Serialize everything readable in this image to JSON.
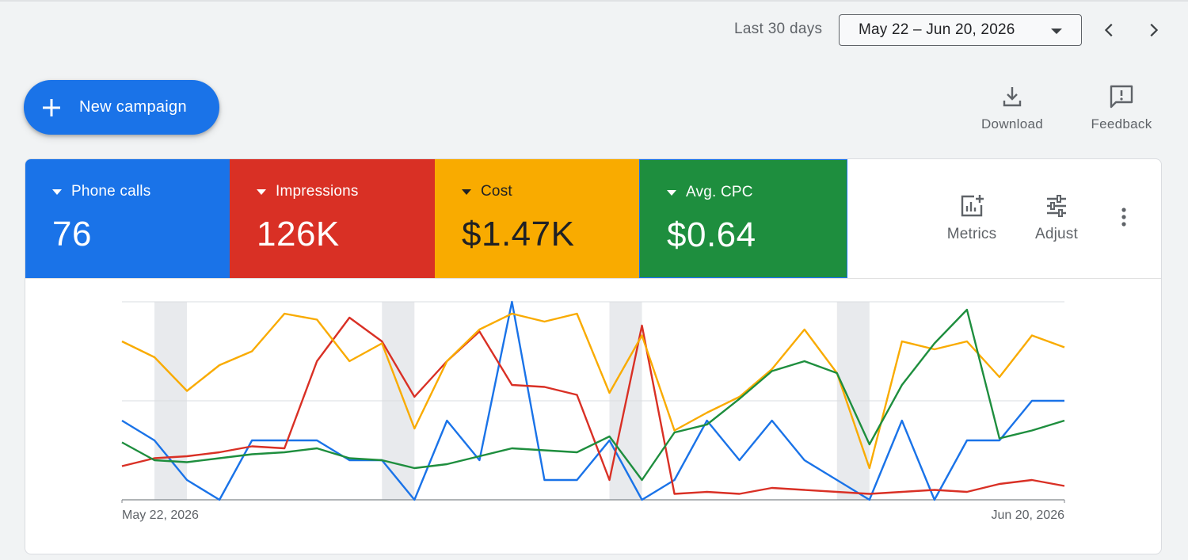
{
  "date_range": {
    "label": "Last 30 days",
    "value": "May 22 – Jun 20, 2026"
  },
  "toolbar": {
    "new_campaign": "New campaign",
    "download": "Download",
    "feedback": "Feedback"
  },
  "metrics": [
    {
      "label": "Phone calls",
      "value": "76",
      "color": "#1a73e8"
    },
    {
      "label": "Impressions",
      "value": "126K",
      "color": "#d93025"
    },
    {
      "label": "Cost",
      "value": "$1.47K",
      "color": "#f9ab00"
    },
    {
      "label": "Avg. CPC",
      "value": "$0.64",
      "color": "#1e8e3e"
    }
  ],
  "card_tools": {
    "metrics": "Metrics",
    "adjust": "Adjust"
  },
  "chart_data": {
    "type": "line",
    "x_start_label": "May 22, 2026",
    "x_end_label": "Jun 20, 2026",
    "categories": [
      1,
      2,
      3,
      4,
      5,
      6,
      7,
      8,
      9,
      10,
      11,
      12,
      13,
      14,
      15,
      16,
      17,
      18,
      19,
      20,
      21,
      22,
      23,
      24,
      25,
      26,
      27,
      28,
      29,
      30
    ],
    "ylim": [
      0,
      100
    ],
    "grid": true,
    "weekend_bands": [
      1,
      8,
      15,
      22
    ],
    "series": [
      {
        "name": "Phone calls",
        "color": "#1a73e8",
        "values": [
          40,
          30,
          10,
          0,
          30,
          30,
          30,
          20,
          20,
          0,
          40,
          20,
          100,
          10,
          10,
          30,
          0,
          10,
          40,
          20,
          40,
          20,
          10,
          0,
          40,
          0,
          30,
          30,
          50,
          50
        ]
      },
      {
        "name": "Impressions",
        "color": "#d93025",
        "values": [
          17,
          21,
          22,
          24,
          27,
          26,
          70,
          92,
          80,
          52,
          70,
          85,
          58,
          57,
          53,
          10,
          88,
          3,
          4,
          3,
          6,
          5,
          4,
          3,
          4,
          5,
          4,
          8,
          10,
          7
        ]
      },
      {
        "name": "Cost",
        "color": "#f9ab00",
        "values": [
          80,
          72,
          55,
          68,
          75,
          94,
          91,
          70,
          79,
          36,
          70,
          86,
          94,
          90,
          94,
          54,
          83,
          35,
          44,
          52,
          66,
          86,
          64,
          16,
          80,
          76,
          80,
          62,
          83,
          77
        ]
      },
      {
        "name": "Avg. CPC",
        "color": "#1e8e3e",
        "values": [
          29,
          20,
          19,
          21,
          23,
          24,
          26,
          21,
          20,
          16,
          18,
          22,
          26,
          25,
          24,
          32,
          10,
          34,
          38,
          51,
          65,
          70,
          64,
          28,
          58,
          79,
          96,
          31,
          35,
          40
        ]
      }
    ]
  }
}
